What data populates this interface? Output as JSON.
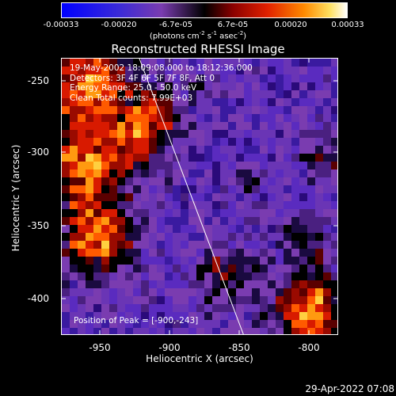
{
  "colorbar": {
    "ticks": [
      "-0.00033",
      "-0.00020",
      "-6.7e-05",
      "6.7e-05",
      "0.00020",
      "0.00033"
    ],
    "units_prefix": "(photons cm",
    "units_exp1": "-2",
    "units_mid": " s",
    "units_exp2": "-1",
    "units_mid2": " asec",
    "units_exp3": "-2",
    "units_suffix": ")",
    "colors": [
      "#0000ff",
      "#5a2bbf",
      "#7a3cb0",
      "#000000",
      "#7a0000",
      "#d81a00",
      "#ff7a00",
      "#ffd040",
      "#ffffff"
    ]
  },
  "title": "Reconstructed RHESSI Image",
  "annotation": {
    "time": "19-May-2002 18:09:08.000 to 18:12:36.000",
    "detectors": "Detectors: 3F 4F 6F 5F 7F 8F, Att 0",
    "energy": "Energy Range: 25.0 - 50.0 keV",
    "clean": "Clean     Total counts: 7.99E+03",
    "peak": "Position of Peak = [-900,-243]"
  },
  "axes": {
    "xlabel": "Heliocentric X (arcsec)",
    "ylabel": "Heliocentric Y (arcsec)",
    "xticks": [
      "-950",
      "-900",
      "-850",
      "-800"
    ],
    "yticks": [
      "-250",
      "-300",
      "-350",
      "-400"
    ]
  },
  "timestamp": "29-Apr-2022 07:08"
}
